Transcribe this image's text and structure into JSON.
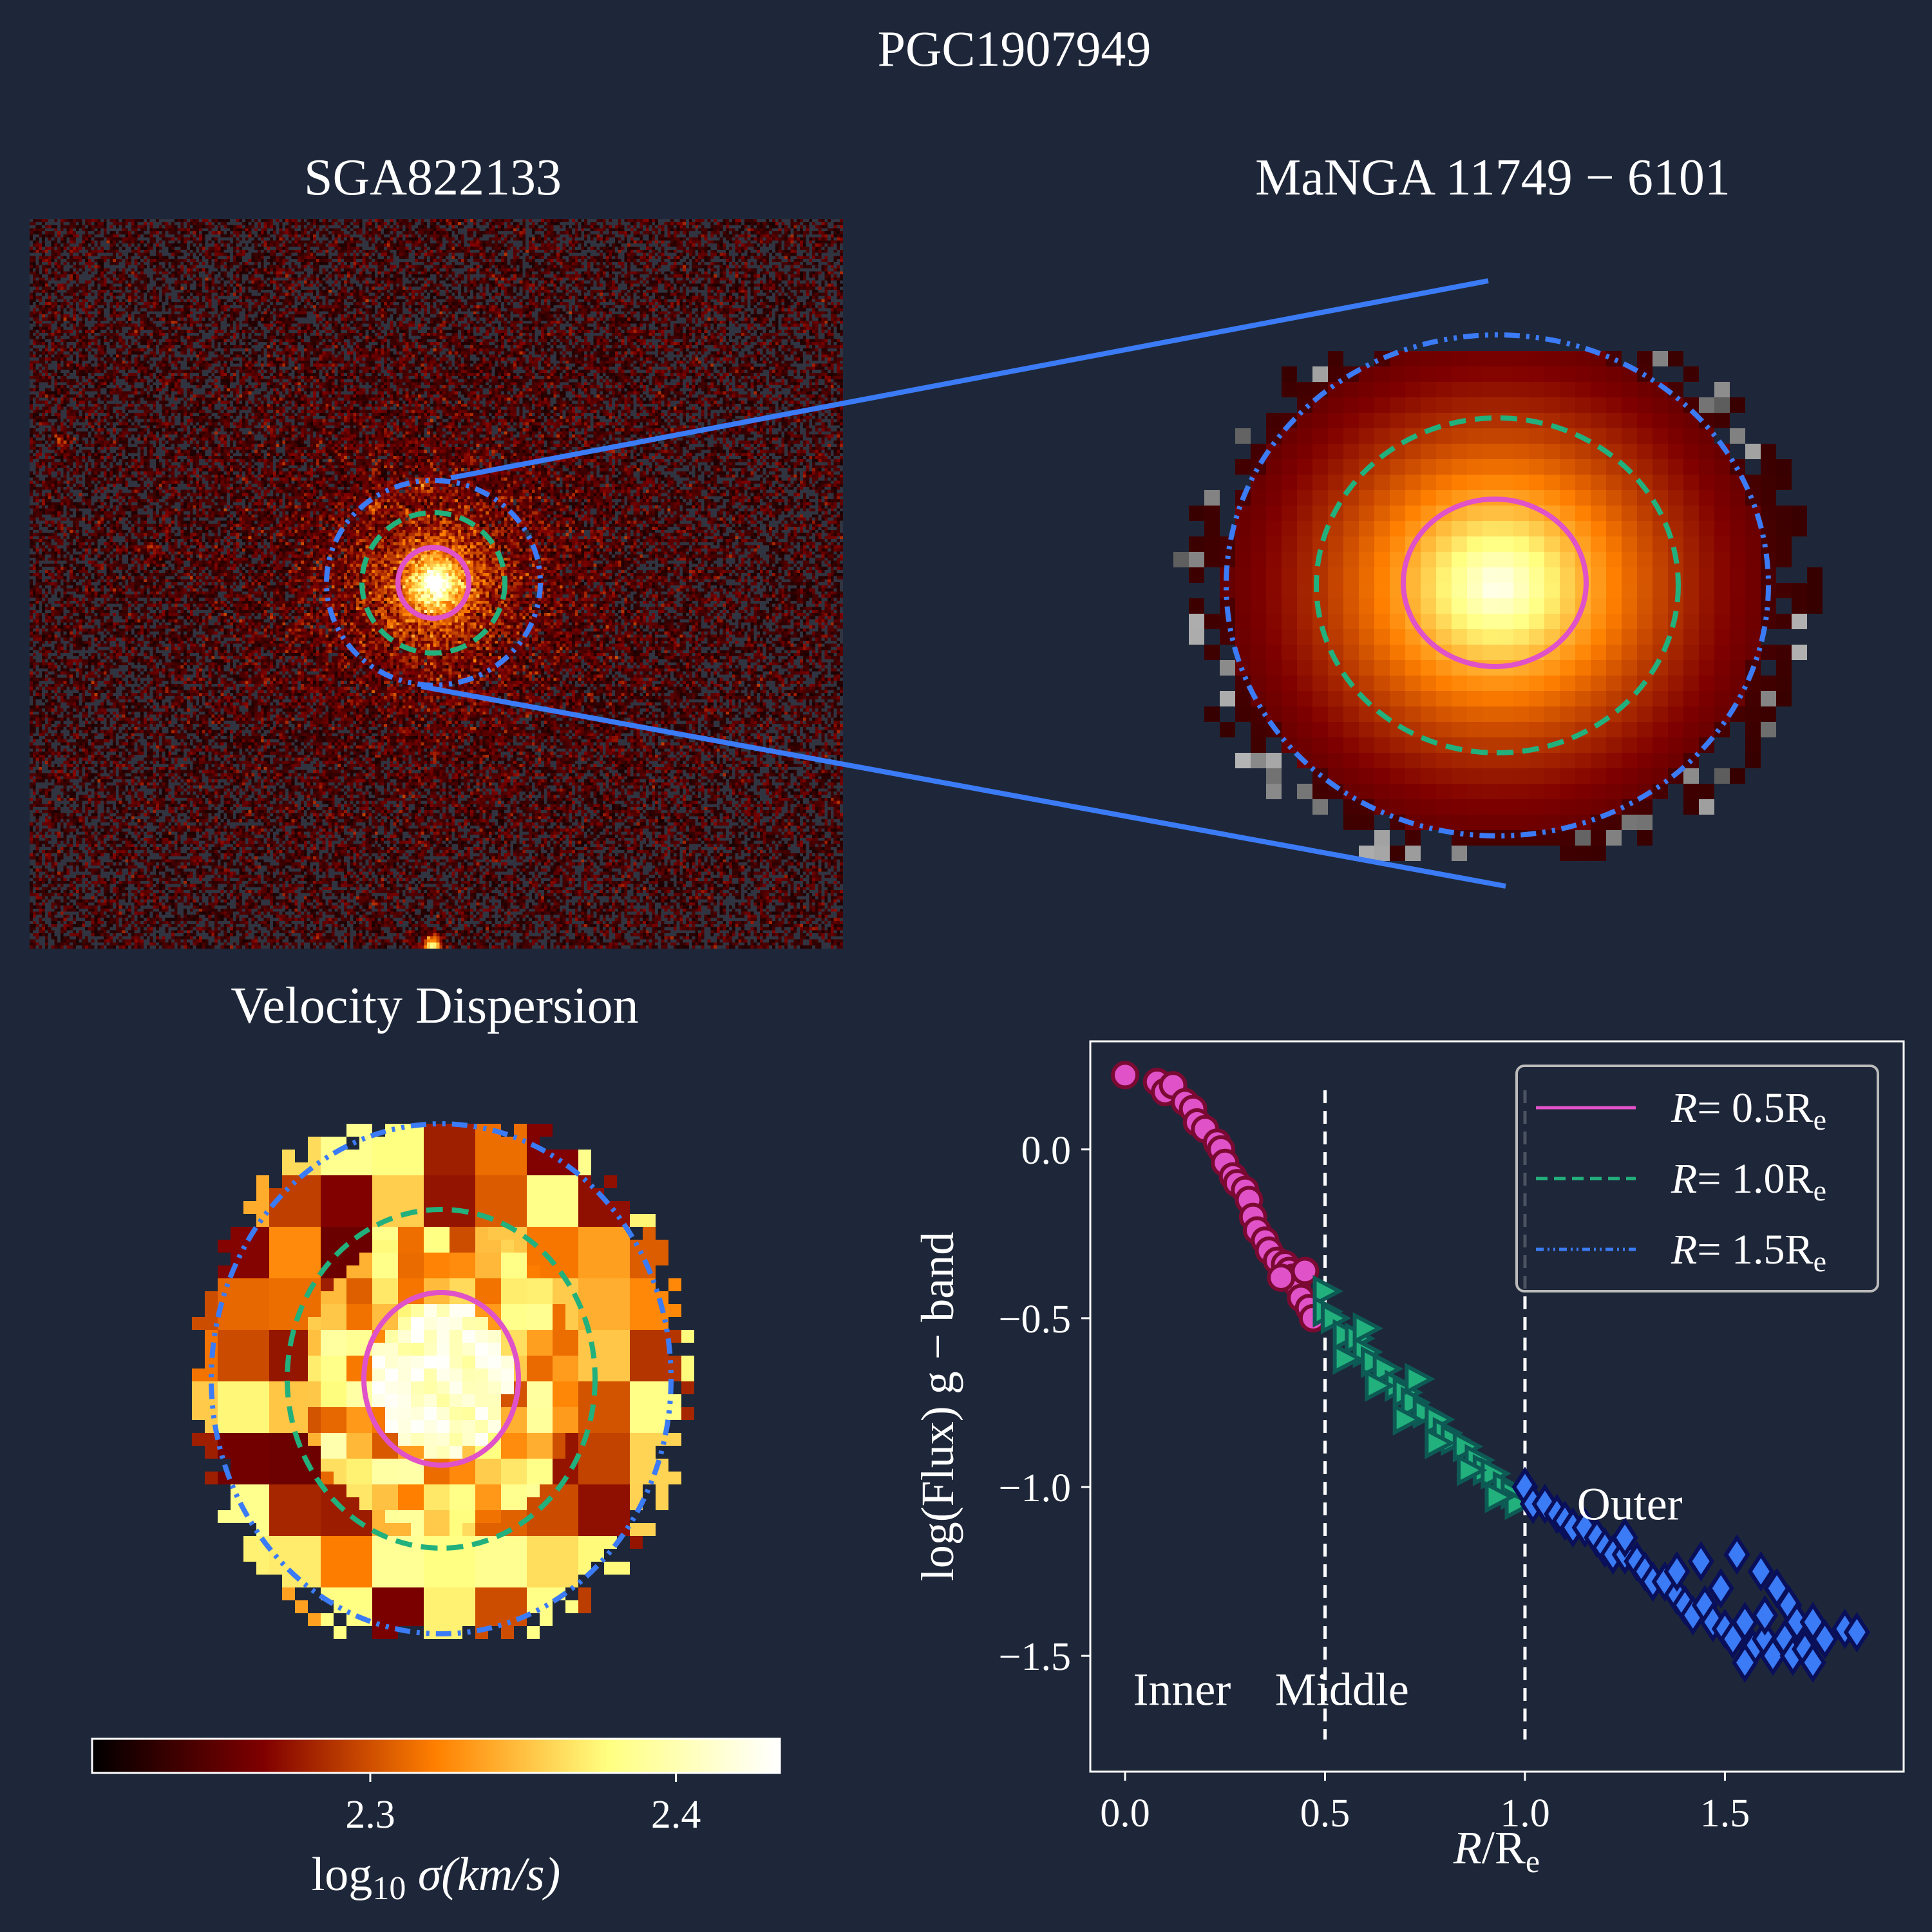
{
  "figure": {
    "title": "PGC1907949"
  },
  "panels": {
    "sga_title": "SGA822133",
    "manga_title": "MaNGA 11749 − 6101",
    "vdisp_title": "Velocity Dispersion"
  },
  "colors": {
    "background": "#1e2739",
    "inner": "#e052c8",
    "inner_edge": "#7a0a32",
    "middle": "#22b07d",
    "middle_edge": "#0d5a55",
    "outer": "#3b7bf5",
    "outer_edge": "#0a0f5a",
    "zoom_lines": "#3b7bf5"
  },
  "colorbar": {
    "colormap": "afmhot",
    "range": [
      2.209,
      2.434
    ],
    "ticks": [
      "2.3",
      "2.4"
    ],
    "tick_values": [
      2.3,
      2.4
    ],
    "label_main": "log",
    "label_sub": "10",
    "label_rest": " σ(km/s)"
  },
  "chart_data": {
    "type": "scatter",
    "xlabel_var": "R",
    "xlabel_rest": "/R",
    "xlabel_sub": "e",
    "ylabel": "log(Flux) g − band",
    "xlim": [
      -0.087,
      1.947
    ],
    "ylim": [
      -1.843,
      0.32
    ],
    "xticks": [
      0.0,
      0.5,
      1.0,
      1.5
    ],
    "xtick_labels": [
      "0.0",
      "0.5",
      "1.0",
      "1.5"
    ],
    "yticks": [
      0.0,
      -0.5,
      -1.0,
      -1.5
    ],
    "ytick_labels": [
      "0.0",
      "−0.5",
      "−1.0",
      "−1.5"
    ],
    "vlines": [
      0.5,
      1.0
    ],
    "vline_range": [
      -1.748,
      0.175
    ],
    "annotations": [
      {
        "text": "Inner",
        "x": 0.02,
        "y": -1.6
      },
      {
        "text": "Middle",
        "x": 0.375,
        "y": -1.6
      },
      {
        "text": "Outer",
        "x": 1.13,
        "y": -1.05
      }
    ],
    "legend": {
      "placement": "upper-right",
      "entries": [
        {
          "var": "R",
          "eq": "= 0.5R",
          "sub": "e",
          "style": "solid",
          "color": "#e052c8"
        },
        {
          "var": "R",
          "eq": "= 1.0R",
          "sub": "e",
          "style": "dashed",
          "color": "#22b07d"
        },
        {
          "var": "R",
          "eq": "= 1.5R",
          "sub": "e",
          "style": "dashdotdot",
          "color": "#3b7bf5"
        }
      ]
    },
    "series": [
      {
        "name": "Inner",
        "marker": "circle",
        "points": [
          [
            0,
            0.22
          ],
          [
            0.08,
            0.2
          ],
          [
            0.1,
            0.17
          ],
          [
            0.12,
            0.19
          ],
          [
            0.15,
            0.14
          ],
          [
            0.17,
            0.12
          ],
          [
            0.18,
            0.08
          ],
          [
            0.2,
            0.06
          ],
          [
            0.23,
            0.02
          ],
          [
            0.24,
            0
          ],
          [
            0.25,
            -0.04
          ],
          [
            0.27,
            -0.08
          ],
          [
            0.28,
            -0.1
          ],
          [
            0.3,
            -0.12
          ],
          [
            0.31,
            -0.15
          ],
          [
            0.32,
            -0.2
          ],
          [
            0.33,
            -0.24
          ],
          [
            0.35,
            -0.27
          ],
          [
            0.36,
            -0.3
          ],
          [
            0.38,
            -0.33
          ],
          [
            0.4,
            -0.34
          ],
          [
            0.41,
            -0.36
          ],
          [
            0.42,
            -0.38
          ],
          [
            0.43,
            -0.4
          ],
          [
            0.44,
            -0.44
          ],
          [
            0.46,
            -0.47
          ],
          [
            0.47,
            -0.5
          ],
          [
            0.39,
            -0.38
          ],
          [
            0.45,
            -0.36
          ]
        ]
      },
      {
        "name": "Middle",
        "marker": "triangle-right",
        "points": [
          [
            0.5,
            -0.42
          ],
          [
            0.5,
            -0.48
          ],
          [
            0.52,
            -0.5
          ],
          [
            0.55,
            -0.55
          ],
          [
            0.58,
            -0.56
          ],
          [
            0.6,
            -0.6
          ],
          [
            0.62,
            -0.63
          ],
          [
            0.65,
            -0.65
          ],
          [
            0.68,
            -0.7
          ],
          [
            0.7,
            -0.72
          ],
          [
            0.72,
            -0.75
          ],
          [
            0.75,
            -0.78
          ],
          [
            0.78,
            -0.8
          ],
          [
            0.8,
            -0.84
          ],
          [
            0.82,
            -0.86
          ],
          [
            0.85,
            -0.88
          ],
          [
            0.88,
            -0.92
          ],
          [
            0.9,
            -0.95
          ],
          [
            0.92,
            -0.96
          ],
          [
            0.95,
            -1.0
          ],
          [
            0.97,
            -1.02
          ],
          [
            0.98,
            -1.05
          ],
          [
            0.55,
            -0.62
          ],
          [
            0.63,
            -0.7
          ],
          [
            0.7,
            -0.8
          ],
          [
            0.78,
            -0.87
          ],
          [
            0.86,
            -0.95
          ],
          [
            0.93,
            -1.03
          ],
          [
            0.6,
            -0.53
          ],
          [
            0.73,
            -0.68
          ]
        ]
      },
      {
        "name": "Outer",
        "marker": "diamond",
        "points": [
          [
            1.0,
            -1.0
          ],
          [
            1.02,
            -1.05
          ],
          [
            1.05,
            -1.05
          ],
          [
            1.08,
            -1.08
          ],
          [
            1.1,
            -1.1
          ],
          [
            1.12,
            -1.12
          ],
          [
            1.15,
            -1.12
          ],
          [
            1.18,
            -1.15
          ],
          [
            1.2,
            -1.18
          ],
          [
            1.22,
            -1.2
          ],
          [
            1.25,
            -1.2
          ],
          [
            1.28,
            -1.22
          ],
          [
            1.3,
            -1.25
          ],
          [
            1.32,
            -1.28
          ],
          [
            1.35,
            -1.28
          ],
          [
            1.38,
            -1.32
          ],
          [
            1.4,
            -1.35
          ],
          [
            1.42,
            -1.38
          ],
          [
            1.45,
            -1.35
          ],
          [
            1.47,
            -1.4
          ],
          [
            1.5,
            -1.42
          ],
          [
            1.52,
            -1.45
          ],
          [
            1.55,
            -1.4
          ],
          [
            1.57,
            -1.48
          ],
          [
            1.6,
            -1.45
          ],
          [
            1.62,
            -1.5
          ],
          [
            1.65,
            -1.45
          ],
          [
            1.67,
            -1.5
          ],
          [
            1.7,
            -1.48
          ],
          [
            1.72,
            -1.52
          ],
          [
            1.75,
            -1.45
          ],
          [
            1.8,
            -1.42
          ],
          [
            1.83,
            -1.43
          ],
          [
            1.44,
            -1.22
          ],
          [
            1.53,
            -1.2
          ],
          [
            1.59,
            -1.25
          ],
          [
            1.63,
            -1.3
          ],
          [
            1.66,
            -1.35
          ],
          [
            1.49,
            -1.3
          ],
          [
            1.38,
            -1.25
          ],
          [
            1.25,
            -1.15
          ],
          [
            1.6,
            -1.38
          ],
          [
            1.55,
            -1.52
          ],
          [
            1.68,
            -1.4
          ],
          [
            1.72,
            -1.4
          ]
        ]
      }
    ]
  }
}
